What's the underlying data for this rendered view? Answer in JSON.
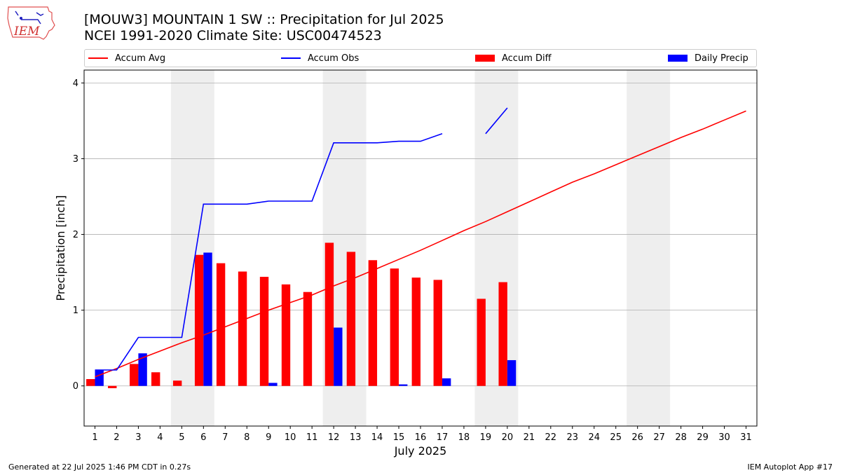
{
  "header": {
    "title_line1": "[MOUW3] MOUNTAIN 1 SW :: Precipitation for Jul 2025",
    "title_line2": "NCEI 1991-2020 Climate Site: USC00474523",
    "logo_text": "IEM"
  },
  "legend": {
    "accum_avg": "Accum Avg",
    "accum_obs": "Accum Obs",
    "accum_diff": "Accum Diff",
    "daily_precip": "Daily Precip"
  },
  "colors": {
    "accum_avg": "#ff0000",
    "accum_obs": "#0000ff",
    "accum_diff": "#ff0000",
    "daily_precip": "#0000ff",
    "weekend_band": "#eeeeee",
    "grid": "#b0b0b0"
  },
  "footer": {
    "generated": "Generated at 22 Jul 2025 1:46 PM CDT in 0.27s",
    "app": "IEM Autoplot App #17"
  },
  "chart_data": {
    "type": "bar",
    "xlabel": "July 2025",
    "ylabel": "Precipitation [inch]",
    "xlim": [
      0.5,
      31.5
    ],
    "ylim": [
      -0.53,
      4.17
    ],
    "yticks": [
      0,
      1,
      2,
      3,
      4
    ],
    "grid": "horizontal",
    "legend_position": "top",
    "categories": [
      "1",
      "2",
      "3",
      "4",
      "5",
      "6",
      "7",
      "8",
      "9",
      "10",
      "11",
      "12",
      "13",
      "14",
      "15",
      "16",
      "17",
      "18",
      "19",
      "20",
      "21",
      "22",
      "23",
      "24",
      "25",
      "26",
      "27",
      "28",
      "29",
      "30",
      "31"
    ],
    "shaded_weekends": [
      [
        5,
        6
      ],
      [
        12,
        13
      ],
      [
        19,
        20
      ],
      [
        26,
        27
      ]
    ],
    "series": [
      {
        "name": "Accum Avg",
        "kind": "line",
        "values": [
          0.12,
          0.23,
          0.35,
          0.46,
          0.57,
          0.67,
          0.78,
          0.89,
          1.0,
          1.1,
          1.2,
          1.32,
          1.43,
          1.55,
          1.67,
          1.79,
          1.92,
          2.05,
          2.17,
          2.3,
          2.43,
          2.56,
          2.69,
          2.8,
          2.92,
          3.04,
          3.16,
          3.28,
          3.39,
          3.51,
          3.63
        ]
      },
      {
        "name": "Accum Obs",
        "kind": "line",
        "values": [
          0.21,
          0.21,
          0.64,
          0.64,
          0.64,
          2.4,
          2.4,
          2.4,
          2.44,
          2.44,
          2.44,
          3.21,
          3.21,
          3.21,
          3.23,
          3.23,
          3.33,
          null,
          3.33,
          3.67,
          null,
          null,
          null,
          null,
          null,
          null,
          null,
          null,
          null,
          null,
          null
        ]
      },
      {
        "name": "Accum Diff",
        "kind": "bar",
        "values": [
          0.09,
          -0.03,
          0.29,
          0.18,
          0.07,
          1.73,
          1.62,
          1.51,
          1.44,
          1.34,
          1.24,
          1.89,
          1.77,
          1.66,
          1.55,
          1.43,
          1.4,
          null,
          1.15,
          1.37,
          null,
          null,
          null,
          null,
          null,
          null,
          null,
          null,
          null,
          null,
          null
        ]
      },
      {
        "name": "Daily Precip",
        "kind": "bar",
        "values": [
          0.21,
          0.0,
          0.43,
          0.0,
          0.0,
          1.76,
          0.0,
          0.0,
          0.04,
          0.0,
          0.0,
          0.77,
          0.0,
          0.0,
          0.02,
          0.0,
          0.1,
          null,
          0.0,
          0.34,
          null,
          null,
          null,
          null,
          null,
          null,
          null,
          null,
          null,
          null,
          null
        ]
      }
    ]
  }
}
